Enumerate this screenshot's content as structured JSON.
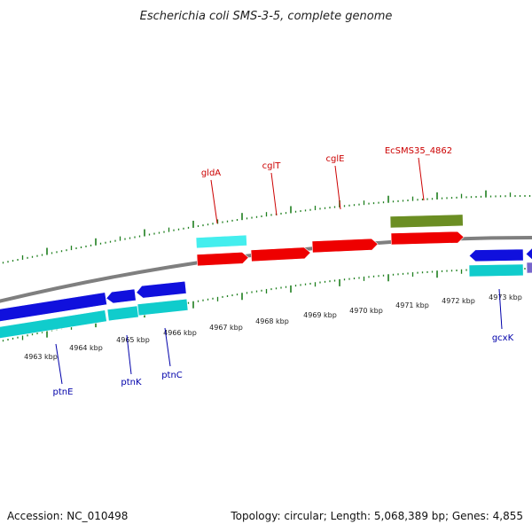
{
  "title": "Escherichia coli SMS-3-5, complete genome",
  "footer": {
    "accession": "Accession: NC_010498",
    "summary": "Topology: circular; Length: 5,068,389 bp; Genes: 4,855"
  },
  "colors": {
    "backbone": "#7f7f7f",
    "ticks": "#1e7f1e",
    "label_top": "#cc0000",
    "label_bottom": "#0000aa",
    "gene_red": "#ee0000",
    "gene_blue": "#1010dd",
    "gene_cyan": "#10cccc",
    "gene_cyan_light": "#44eeee",
    "gene_olive": "#6b8e23",
    "gene_purple": "#7766cc"
  },
  "kbp_labels": [
    "4963 kbp",
    "4964 kbp",
    "4965 kbp",
    "4966 kbp",
    "4967 kbp",
    "4968 kbp",
    "4969 kbp",
    "4970 kbp",
    "4971 kbp",
    "4972 kbp",
    "4973 kbp"
  ],
  "gene_labels_top": [
    "gldA",
    "cglT",
    "cglE",
    "EcSMS35_4862"
  ],
  "gene_labels_bottom": [
    "ptnE",
    "ptnK",
    "ptnC",
    "gcxK"
  ]
}
